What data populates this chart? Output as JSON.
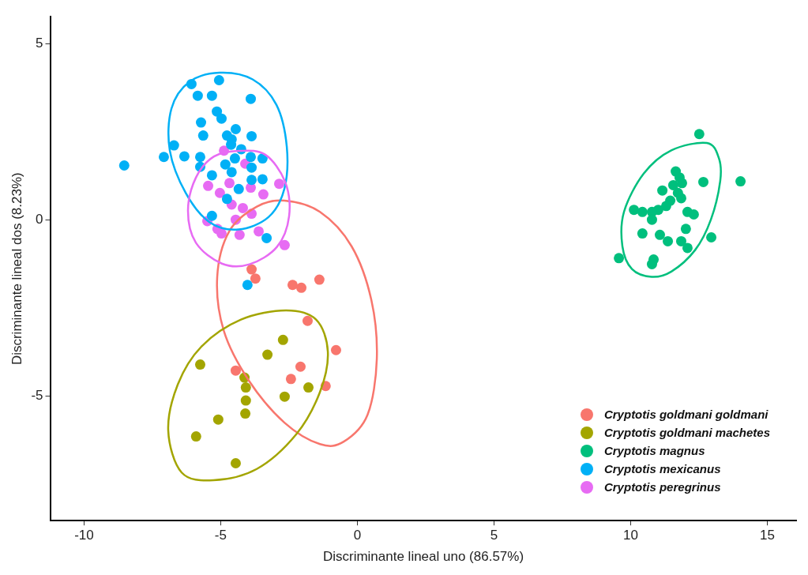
{
  "chart_data": {
    "type": "scatter",
    "xlabel": "Discriminante lineal uno (86.57%)",
    "ylabel": "Discriminante lineal dos (8.23%)",
    "xlim": [
      -11.24,
      16.07
    ],
    "ylim": [
      -8.54,
      5.76
    ],
    "xticks": [
      -10,
      -5,
      0,
      5,
      10,
      15
    ],
    "yticks": [
      -5,
      0,
      5
    ],
    "grid": false,
    "legend": "bottom right",
    "marker": "circle",
    "series": [
      {
        "name": "Cryptotis goldmani goldmani",
        "color": "#f8766d",
        "x": [
          -3.87,
          -3.73,
          -2.37,
          -2.05,
          -1.39,
          -1.82,
          -0.78,
          -2.08,
          -2.43,
          -4.45,
          -1.16
        ],
        "values": [
          -1.41,
          -1.67,
          -1.85,
          -1.93,
          -1.7,
          -2.87,
          -3.7,
          -4.17,
          -4.52,
          -4.28,
          -4.72
        ]
      },
      {
        "name": "Cryptotis goldmani machetes",
        "color": "#a3a500",
        "x": [
          -2.72,
          -3.29,
          -5.75,
          -4.13,
          -4.08,
          -4.08,
          -2.66,
          -1.79,
          -5.09,
          -4.1,
          -5.9,
          -4.45
        ],
        "values": [
          -3.41,
          -3.83,
          -4.11,
          -4.48,
          -4.76,
          -5.13,
          -5.02,
          -4.76,
          -5.67,
          -5.5,
          -6.15,
          -6.91
        ]
      },
      {
        "name": "Cryptotis magnus",
        "color": "#00bf7d",
        "x": [
          12.51,
          14.02,
          12.66,
          11.65,
          11.79,
          11.88,
          11.56,
          11.16,
          11.73,
          11.85,
          11.45,
          11.3,
          11.01,
          10.78,
          10.12,
          10.43,
          12.08,
          12.31,
          10.78,
          12.02,
          10.43,
          11.07,
          11.36,
          11.85,
          12.08,
          12.95,
          9.57,
          10.84,
          10.78
        ],
        "values": [
          2.43,
          1.09,
          1.07,
          1.37,
          1.2,
          1.04,
          0.98,
          0.83,
          0.76,
          0.61,
          0.54,
          0.39,
          0.28,
          0.22,
          0.28,
          0.22,
          0.22,
          0.15,
          0.0,
          -0.26,
          -0.39,
          -0.43,
          -0.61,
          -0.61,
          -0.8,
          -0.5,
          -1.09,
          -1.13,
          -1.26
        ]
      },
      {
        "name": "Cryptotis mexicanus",
        "color": "#00b0f6",
        "x": [
          -6.07,
          -5.06,
          -5.84,
          -5.32,
          -3.9,
          -5.14,
          -4.97,
          -5.72,
          -5.64,
          -4.77,
          -4.45,
          -4.6,
          -3.87,
          -6.71,
          -7.08,
          -6.33,
          -5.75,
          -8.53,
          -5.75,
          -4.62,
          -4.25,
          -4.48,
          -4.83,
          -3.9,
          -3.47,
          -5.32,
          -4.6,
          -3.87,
          -3.87,
          -3.47,
          -4.34,
          -4.77,
          -5.32,
          -3.32,
          -4.02
        ],
        "values": [
          3.85,
          3.96,
          3.52,
          3.52,
          3.43,
          3.07,
          2.87,
          2.76,
          2.39,
          2.39,
          2.57,
          2.28,
          2.37,
          2.11,
          1.78,
          1.8,
          1.78,
          1.54,
          1.5,
          2.13,
          2.0,
          1.74,
          1.57,
          1.78,
          1.74,
          1.26,
          1.35,
          1.48,
          1.13,
          1.15,
          0.87,
          0.59,
          0.11,
          -0.52,
          -1.85
        ]
      },
      {
        "name": "Cryptotis peregrinus",
        "color": "#e76bf3",
        "x": [
          -4.88,
          -4.1,
          -5.46,
          -4.68,
          -3.9,
          -5.03,
          -2.86,
          -3.44,
          -4.6,
          -4.19,
          -3.87,
          -5.49,
          -5.12,
          -4.97,
          -4.45,
          -4.31,
          -3.61,
          -2.66
        ],
        "values": [
          1.96,
          1.59,
          0.96,
          1.04,
          0.91,
          0.76,
          1.02,
          0.72,
          0.43,
          0.33,
          0.17,
          -0.04,
          -0.26,
          -0.39,
          0.0,
          -0.43,
          -0.33,
          -0.72
        ]
      }
    ]
  }
}
